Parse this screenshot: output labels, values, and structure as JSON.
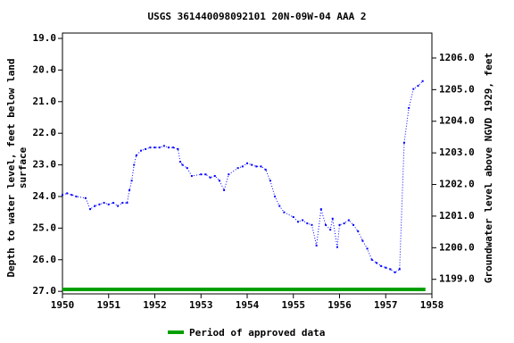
{
  "chart_data": {
    "type": "line",
    "title": "USGS 361440098092101 20N-09W-04 AAA 2",
    "ylabel": [
      "Depth to water level, feet below land",
      "surface"
    ],
    "y2label": "Groundwater level above NGVD 1929, feet",
    "xlim": [
      1950,
      1958
    ],
    "xticks": [
      1950,
      1951,
      1952,
      1953,
      1954,
      1955,
      1956,
      1957,
      1958
    ],
    "ylim": [
      18.83,
      27.08
    ],
    "yticks": [
      {
        "value": 19,
        "label": "19.0"
      },
      {
        "value": 20,
        "label": "20.0"
      },
      {
        "value": 21,
        "label": "21.0"
      },
      {
        "value": 22,
        "label": "22.0"
      },
      {
        "value": 23,
        "label": "23.0"
      },
      {
        "value": 24,
        "label": "24.0"
      },
      {
        "value": 25,
        "label": "25.0"
      },
      {
        "value": 26,
        "label": "26.0"
      },
      {
        "value": 27,
        "label": "27.0"
      }
    ],
    "y2lim": [
      1206.79,
      1198.54
    ],
    "y2ticks": [
      {
        "value": 1199,
        "label": "1199.0"
      },
      {
        "value": 1200,
        "label": "1200.0"
      },
      {
        "value": 1201,
        "label": "1201.0"
      },
      {
        "value": 1202,
        "label": "1202.0"
      },
      {
        "value": 1203,
        "label": "1203.0"
      },
      {
        "value": 1204,
        "label": "1204.0"
      },
      {
        "value": 1205,
        "label": "1205.0"
      },
      {
        "value": 1206,
        "label": "1206.0"
      }
    ],
    "x": [
      1950.0,
      1950.1,
      1950.2,
      1950.3,
      1950.5,
      1950.6,
      1950.7,
      1950.8,
      1950.9,
      1951.0,
      1951.1,
      1951.2,
      1951.3,
      1951.4,
      1951.45,
      1951.5,
      1951.55,
      1951.6,
      1951.7,
      1951.8,
      1951.9,
      1952.0,
      1952.1,
      1952.2,
      1952.3,
      1952.4,
      1952.5,
      1952.55,
      1952.6,
      1952.7,
      1952.8,
      1953.0,
      1953.1,
      1953.2,
      1953.3,
      1953.4,
      1953.5,
      1953.6,
      1953.8,
      1953.9,
      1954.0,
      1954.1,
      1954.2,
      1954.3,
      1954.4,
      1954.5,
      1954.6,
      1954.7,
      1954.8,
      1955.0,
      1955.1,
      1955.2,
      1955.3,
      1955.4,
      1955.5,
      1955.6,
      1955.7,
      1955.8,
      1955.85,
      1955.95,
      1956.0,
      1956.1,
      1956.2,
      1956.3,
      1956.4,
      1956.5,
      1956.6,
      1956.7,
      1956.8,
      1956.9,
      1957.0,
      1957.1,
      1957.2,
      1957.3,
      1957.4,
      1957.5,
      1957.6,
      1957.7,
      1957.8
    ],
    "series": [
      {
        "color": "#0000ff",
        "values": [
          23.95,
          23.9,
          23.95,
          24.0,
          24.05,
          24.4,
          24.3,
          24.25,
          24.2,
          24.25,
          24.2,
          24.3,
          24.2,
          24.2,
          23.8,
          23.5,
          23.0,
          22.7,
          22.55,
          22.5,
          22.45,
          22.45,
          22.45,
          22.4,
          22.45,
          22.45,
          22.5,
          22.9,
          23.0,
          23.1,
          23.35,
          23.3,
          23.3,
          23.4,
          23.35,
          23.5,
          23.8,
          23.3,
          23.1,
          23.05,
          22.95,
          23.0,
          23.05,
          23.05,
          23.15,
          23.5,
          24.0,
          24.3,
          24.5,
          24.65,
          24.8,
          24.75,
          24.85,
          24.9,
          25.55,
          24.4,
          24.9,
          25.05,
          24.7,
          25.6,
          24.9,
          24.85,
          24.75,
          24.9,
          25.1,
          25.4,
          25.65,
          26.0,
          26.1,
          26.2,
          26.25,
          26.3,
          26.4,
          26.3,
          22.3,
          21.2,
          20.6,
          20.5,
          20.35
        ]
      }
    ],
    "approved_period": {
      "name": "Period of approved data",
      "color": "#00a000",
      "start": 1950,
      "end": 1957.86
    }
  }
}
